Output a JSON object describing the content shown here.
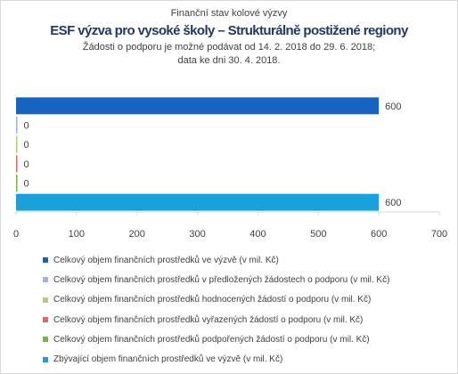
{
  "header": {
    "title_top": "Finanční stav kolové výzvy",
    "title_main": "ESF výzva pro vysoké školy – Strukturálně postižené regiony",
    "subtitle_1": "Žádosti o podporu je možné  podávat od 14. 2. 2018 do 29. 6. 2018;",
    "subtitle_2": "data ke  dni 30. 4. 2018."
  },
  "chart_data": {
    "type": "bar",
    "orientation": "horizontal",
    "title": "ESF výzva pro vysoké školy – Strukturálně postižené regiony",
    "xlim": [
      0,
      700
    ],
    "x_ticks": [
      "0",
      "100",
      "200",
      "300",
      "400",
      "500",
      "600",
      "700"
    ],
    "grid": false,
    "legend_position": "bottom",
    "series": [
      {
        "name": "Celkový objem finančních prostředků ve výzvě (v mil. Kč)",
        "value": 600,
        "label": "600",
        "color": "#1565c0"
      },
      {
        "name": "Celkový objem finančních prostředků v předložených žádostech o podporu (v mil. Kč)",
        "value": 0,
        "label": "0",
        "color": "#9fb5d9"
      },
      {
        "name": "Celkový objem finančních prostředků hodnocených žádostí o podporu (v mil. Kč)",
        "value": 0,
        "label": "0",
        "color": "#b7c97c"
      },
      {
        "name": "Celkový objem finančních prostředků vyřazených žádostí o podporu (v mil. Kč)",
        "value": 0,
        "label": "0",
        "color": "#e06666"
      },
      {
        "name": "Celkový objem finančních prostředků podpořených žádostí o podporu (v mil. Kč)",
        "value": 0,
        "label": "0",
        "color": "#7cb342"
      },
      {
        "name": "Zbývající objem finančních prostředků ve výzvě (v mil. Kč)",
        "value": 600,
        "label": "600",
        "color": "#1ba1d9"
      }
    ]
  }
}
